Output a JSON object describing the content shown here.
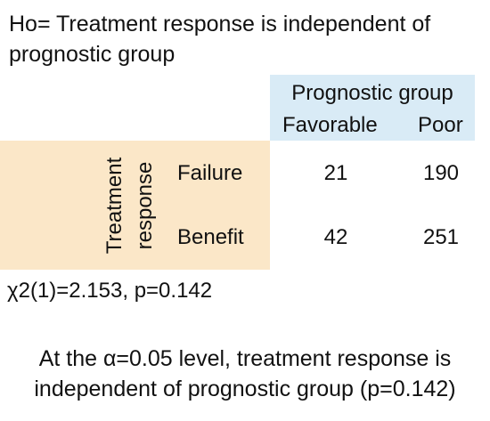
{
  "hypothesis": "Ho= Treatment response is independent of prognostic group",
  "table": {
    "column_group_label": "Prognostic group",
    "columns": [
      "Favorable",
      "Poor"
    ],
    "row_group_label_line1": "Treatment",
    "row_group_label_line2": "response",
    "rows": [
      {
        "label": "Failure",
        "values": [
          "21",
          "190"
        ]
      },
      {
        "label": "Benefit",
        "values": [
          "42",
          "251"
        ]
      }
    ]
  },
  "test_result": "χ2(1)=2.153, p=0.142",
  "conclusion_line1": "At the α=0.05 level, treatment response is",
  "conclusion_line2": "independent of prognostic group (p=0.142)"
}
